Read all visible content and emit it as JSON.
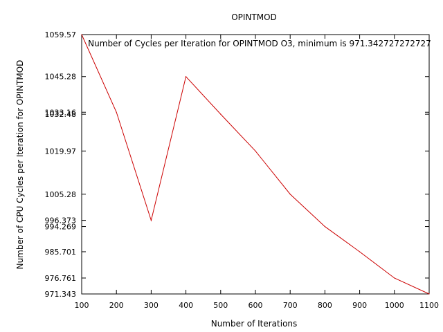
{
  "chart_data": {
    "type": "line",
    "title": "OPINTMOD",
    "xlabel": "Number of Iterations",
    "ylabel": "Number of CPU Cycles per Iteration for OPINTMOD",
    "xlim": [
      100,
      1100
    ],
    "ylim": [
      971.343,
      1059.57
    ],
    "x_ticks": [
      "100",
      "200",
      "300",
      "400",
      "500",
      "600",
      "700",
      "800",
      "900",
      "1000",
      "1100"
    ],
    "y_ticks": [
      "971.343",
      "976.761",
      "985.701",
      "994.269",
      "996.373",
      "1005.28",
      "1019.97",
      "1032.48",
      "1033.16",
      "1045.28",
      "1059.57"
    ],
    "y_tick_values": [
      971.343,
      976.761,
      985.701,
      994.269,
      996.373,
      1005.28,
      1019.97,
      1032.48,
      1033.16,
      1045.28,
      1059.57
    ],
    "legend_placement": "top",
    "grid": false,
    "series": [
      {
        "name": "Number of Cycles per Iteration for OPINTMOD O3, minimum is 971.342727272727",
        "color": "#cc0000",
        "x": [
          100,
          200,
          300,
          400,
          500,
          600,
          700,
          800,
          900,
          1000,
          1100
        ],
        "values": [
          1059.57,
          1033.16,
          996.373,
          1045.28,
          1032.48,
          1019.97,
          1005.28,
          994.269,
          985.701,
          976.761,
          971.343
        ]
      }
    ]
  }
}
